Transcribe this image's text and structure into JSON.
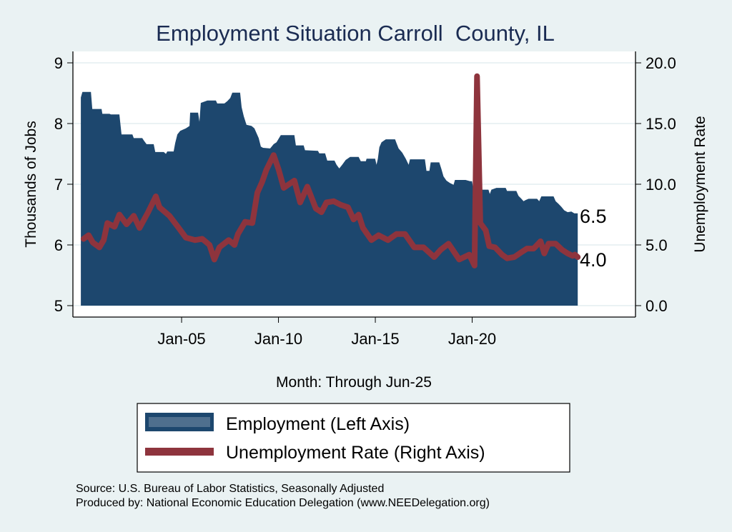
{
  "chart_data": {
    "type": "area+line",
    "title": "Employment Situation Carroll  County, IL",
    "xlabel": "Month: Through Jun-25",
    "ylabel_left": "Thousands of Jobs",
    "ylabel_right": "Unemployment Rate",
    "x_ticks": [
      {
        "label": "Jan-05",
        "t": 2005
      },
      {
        "label": "Jan-10",
        "t": 2010
      },
      {
        "label": "Jan-15",
        "t": 2015
      },
      {
        "label": "Jan-20",
        "t": 2020
      }
    ],
    "y_left_ticks": [
      "5",
      "6",
      "7",
      "8",
      "9"
    ],
    "y_left_range": [
      5,
      9
    ],
    "y_right_ticks": [
      "0.0",
      "5.0",
      "10.0",
      "15.0",
      "20.0"
    ],
    "y_right_range": [
      0,
      20
    ],
    "x_range": [
      1999.39,
      2028.43
    ],
    "grid": true,
    "legend_position": "bottom",
    "colors": {
      "employment": "#1d476e",
      "unemployment": "#8e343d",
      "legend_employment_inner": "#4f6f8e"
    },
    "end_labels": {
      "employment": "6.5",
      "unemployment": "4.0"
    },
    "series": [
      {
        "name": "Employment (Left Axis)",
        "axis": "left",
        "style": "area-step",
        "points": [
          [
            1999.8,
            8.43
          ],
          [
            1999.88,
            8.52
          ],
          [
            2000.32,
            8.52
          ],
          [
            2000.39,
            8.24
          ],
          [
            2000.87,
            8.24
          ],
          [
            2000.91,
            8.16
          ],
          [
            2001.28,
            8.16
          ],
          [
            2001.35,
            8.15
          ],
          [
            2001.79,
            8.15
          ],
          [
            2001.9,
            7.82
          ],
          [
            2002.46,
            7.82
          ],
          [
            2002.53,
            7.76
          ],
          [
            2002.97,
            7.76
          ],
          [
            2003.05,
            7.72
          ],
          [
            2003.19,
            7.66
          ],
          [
            2003.56,
            7.66
          ],
          [
            2003.64,
            7.53
          ],
          [
            2004.08,
            7.53
          ],
          [
            2004.19,
            7.5
          ],
          [
            2004.26,
            7.54
          ],
          [
            2004.59,
            7.54
          ],
          [
            2004.67,
            7.68
          ],
          [
            2004.78,
            7.82
          ],
          [
            2004.93,
            7.88
          ],
          [
            2005.22,
            7.92
          ],
          [
            2005.41,
            7.96
          ],
          [
            2005.44,
            8.18
          ],
          [
            2005.85,
            8.18
          ],
          [
            2005.92,
            8.03
          ],
          [
            2005.99,
            8.34
          ],
          [
            2006.33,
            8.38
          ],
          [
            2006.77,
            8.38
          ],
          [
            2006.84,
            8.33
          ],
          [
            2007.21,
            8.33
          ],
          [
            2007.36,
            8.37
          ],
          [
            2007.51,
            8.42
          ],
          [
            2007.62,
            8.51
          ],
          [
            2008.02,
            8.51
          ],
          [
            2008.1,
            8.27
          ],
          [
            2008.21,
            8.12
          ],
          [
            2008.35,
            7.98
          ],
          [
            2008.61,
            7.96
          ],
          [
            2008.76,
            7.92
          ],
          [
            2008.98,
            7.76
          ],
          [
            2009.09,
            7.62
          ],
          [
            2009.2,
            7.6
          ],
          [
            2009.57,
            7.59
          ],
          [
            2009.75,
            7.66
          ],
          [
            2009.9,
            7.69
          ],
          [
            2010.12,
            7.81
          ],
          [
            2010.82,
            7.81
          ],
          [
            2010.9,
            7.64
          ],
          [
            2011.3,
            7.64
          ],
          [
            2011.37,
            7.56
          ],
          [
            2012.04,
            7.55
          ],
          [
            2012.11,
            7.51
          ],
          [
            2012.41,
            7.51
          ],
          [
            2012.52,
            7.39
          ],
          [
            2012.89,
            7.39
          ],
          [
            2013.0,
            7.32
          ],
          [
            2013.14,
            7.26
          ],
          [
            2013.29,
            7.32
          ],
          [
            2013.47,
            7.4
          ],
          [
            2013.7,
            7.45
          ],
          [
            2014.14,
            7.45
          ],
          [
            2014.25,
            7.38
          ],
          [
            2014.51,
            7.38
          ],
          [
            2014.55,
            7.42
          ],
          [
            2014.99,
            7.42
          ],
          [
            2015.06,
            7.32
          ],
          [
            2015.13,
            7.42
          ],
          [
            2015.21,
            7.61
          ],
          [
            2015.32,
            7.69
          ],
          [
            2015.54,
            7.74
          ],
          [
            2016.02,
            7.74
          ],
          [
            2016.09,
            7.68
          ],
          [
            2016.2,
            7.59
          ],
          [
            2016.39,
            7.52
          ],
          [
            2016.57,
            7.42
          ],
          [
            2016.72,
            7.32
          ],
          [
            2016.79,
            7.41
          ],
          [
            2017.56,
            7.41
          ],
          [
            2017.64,
            7.22
          ],
          [
            2017.79,
            7.22
          ],
          [
            2017.86,
            7.36
          ],
          [
            2018.3,
            7.36
          ],
          [
            2018.41,
            7.25
          ],
          [
            2018.52,
            7.13
          ],
          [
            2018.67,
            7.06
          ],
          [
            2018.85,
            7.02
          ],
          [
            2019.04,
            6.99
          ],
          [
            2019.11,
            7.07
          ],
          [
            2019.66,
            7.07
          ],
          [
            2019.89,
            7.05
          ],
          [
            2019.99,
            7.05
          ],
          [
            2020.07,
            6.9
          ],
          [
            2020.25,
            6.7
          ],
          [
            2020.4,
            6.85
          ],
          [
            2020.51,
            6.91
          ],
          [
            2020.84,
            6.91
          ],
          [
            2020.91,
            6.84
          ],
          [
            2020.99,
            6.91
          ],
          [
            2021.25,
            6.94
          ],
          [
            2021.73,
            6.94
          ],
          [
            2021.8,
            6.89
          ],
          [
            2022.28,
            6.89
          ],
          [
            2022.39,
            6.81
          ],
          [
            2022.54,
            6.76
          ],
          [
            2022.65,
            6.72
          ],
          [
            2022.76,
            6.74
          ],
          [
            2022.91,
            6.76
          ],
          [
            2023.35,
            6.76
          ],
          [
            2023.46,
            6.72
          ],
          [
            2023.57,
            6.8
          ],
          [
            2024.2,
            6.8
          ],
          [
            2024.31,
            6.72
          ],
          [
            2024.45,
            6.68
          ],
          [
            2024.6,
            6.63
          ],
          [
            2024.75,
            6.57
          ],
          [
            2024.93,
            6.54
          ],
          [
            2025.12,
            6.55
          ],
          [
            2025.27,
            6.52
          ],
          [
            2025.45,
            6.52
          ]
        ]
      },
      {
        "name": "Unemployment Rate (Right Axis)",
        "axis": "right",
        "style": "line",
        "points": [
          [
            1999.94,
            5.5
          ],
          [
            2000.2,
            5.8
          ],
          [
            2000.42,
            5.2
          ],
          [
            2000.76,
            4.8
          ],
          [
            2000.98,
            5.4
          ],
          [
            2001.17,
            6.8
          ],
          [
            2001.54,
            6.5
          ],
          [
            2001.79,
            7.5
          ],
          [
            2002.16,
            6.7
          ],
          [
            2002.53,
            7.4
          ],
          [
            2002.83,
            6.4
          ],
          [
            2003.27,
            7.7
          ],
          [
            2003.67,
            9.0
          ],
          [
            2003.86,
            8.1
          ],
          [
            2004.37,
            7.4
          ],
          [
            2004.85,
            6.4
          ],
          [
            2005.22,
            5.6
          ],
          [
            2005.7,
            5.4
          ],
          [
            2006.07,
            5.5
          ],
          [
            2006.44,
            5.0
          ],
          [
            2006.69,
            3.8
          ],
          [
            2006.95,
            4.8
          ],
          [
            2007.43,
            5.4
          ],
          [
            2007.73,
            5.0
          ],
          [
            2007.91,
            5.9
          ],
          [
            2008.28,
            6.9
          ],
          [
            2008.65,
            6.8
          ],
          [
            2008.91,
            9.3
          ],
          [
            2009.16,
            10.2
          ],
          [
            2009.38,
            11.2
          ],
          [
            2009.75,
            12.4
          ],
          [
            2010.01,
            11.2
          ],
          [
            2010.27,
            9.7
          ],
          [
            2010.45,
            9.9
          ],
          [
            2010.82,
            10.3
          ],
          [
            2011.12,
            8.5
          ],
          [
            2011.49,
            9.8
          ],
          [
            2011.93,
            8.0
          ],
          [
            2012.22,
            7.7
          ],
          [
            2012.48,
            8.5
          ],
          [
            2012.85,
            8.6
          ],
          [
            2013.22,
            8.3
          ],
          [
            2013.59,
            8.1
          ],
          [
            2013.88,
            7.1
          ],
          [
            2014.14,
            7.5
          ],
          [
            2014.36,
            6.4
          ],
          [
            2014.8,
            5.4
          ],
          [
            2015.17,
            5.8
          ],
          [
            2015.65,
            5.4
          ],
          [
            2016.09,
            5.9
          ],
          [
            2016.53,
            5.9
          ],
          [
            2017.01,
            4.8
          ],
          [
            2017.49,
            4.8
          ],
          [
            2018.04,
            4.0
          ],
          [
            2018.37,
            4.6
          ],
          [
            2018.78,
            5.1
          ],
          [
            2019.33,
            3.8
          ],
          [
            2019.85,
            4.2
          ],
          [
            2020.12,
            3.3
          ],
          [
            2020.25,
            18.9
          ],
          [
            2020.42,
            6.8
          ],
          [
            2020.7,
            6.2
          ],
          [
            2020.88,
            4.9
          ],
          [
            2021.18,
            4.8
          ],
          [
            2021.54,
            4.2
          ],
          [
            2021.8,
            3.9
          ],
          [
            2022.17,
            4.0
          ],
          [
            2022.54,
            4.4
          ],
          [
            2022.83,
            4.7
          ],
          [
            2023.17,
            4.7
          ],
          [
            2023.53,
            5.3
          ],
          [
            2023.72,
            4.3
          ],
          [
            2023.94,
            5.1
          ],
          [
            2024.31,
            5.1
          ],
          [
            2024.64,
            4.6
          ],
          [
            2024.93,
            4.3
          ],
          [
            2025.19,
            4.1
          ],
          [
            2025.3,
            4.2
          ],
          [
            2025.45,
            4.0
          ]
        ]
      }
    ],
    "legend": [
      {
        "label": "Employment (Left Axis)",
        "series": "employment"
      },
      {
        "label": "Unemployment Rate (Right Axis)",
        "series": "unemployment"
      }
    ],
    "notes": [
      "Source: U.S. Bureau of Labor Statistics, Seasonally Adjusted",
      "Produced by: National Economic Education Delegation (www.NEEDelegation.org)"
    ]
  }
}
